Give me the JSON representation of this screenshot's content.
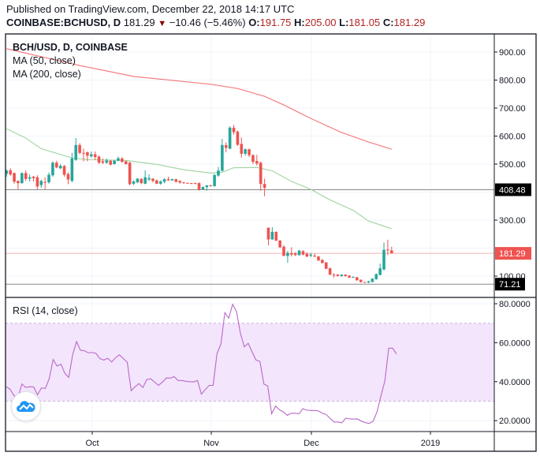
{
  "header": {
    "published": "Published on TradingView.com, December 22, 2018 14:17 UTC",
    "symbol": "COINBASE:BCHUSD, D",
    "last": "181.29",
    "direction_icon": "triangle-down-icon",
    "change": "−10.46 (−5.46%)",
    "o_label": "O:",
    "o": "191.75",
    "h_label": "H:",
    "h": "205.00",
    "l_label": "L:",
    "l": "181.05",
    "c_label": "C:",
    "c": "181.29"
  },
  "legend": {
    "title": "BCH/USD, D, COINBASE",
    "ma50": "MA (50, close)",
    "ma200": "MA (200, close)",
    "rsi": "RSI (14, close)"
  },
  "colors": {
    "up": "#26a69a",
    "down": "#ef5350",
    "ma50": "#a5d6a7",
    "ma200": "#f77c80",
    "rsi": "#ba68c8",
    "rsi_band": "#f3e5fc"
  },
  "chart_data": [
    {
      "type": "candlestick",
      "title": "BCH/USD, D, COINBASE",
      "price_ticks": [
        "100.00",
        "300.00",
        "500.00",
        "600.00",
        "700.00",
        "800.00",
        "900.00"
      ],
      "price_range": [
        20,
        945
      ],
      "x_ticks": [
        "Oct",
        "Nov",
        "Dec",
        "2019"
      ],
      "candles_ohlc": [
        [
          465,
          480,
          455,
          477
        ],
        [
          478,
          485,
          458,
          463
        ],
        [
          468,
          470,
          430,
          437
        ],
        [
          440,
          442,
          410,
          432
        ],
        [
          432,
          470,
          430,
          468
        ],
        [
          468,
          478,
          440,
          447
        ],
        [
          448,
          463,
          438,
          453
        ],
        [
          455,
          458,
          438,
          450
        ],
        [
          453,
          460,
          410,
          420
        ],
        [
          425,
          445,
          415,
          440
        ],
        [
          436,
          453,
          410,
          435
        ],
        [
          435,
          470,
          430,
          462
        ],
        [
          460,
          510,
          455,
          505
        ],
        [
          505,
          512,
          485,
          488
        ],
        [
          485,
          500,
          482,
          494
        ],
        [
          493,
          497,
          455,
          462
        ],
        [
          465,
          470,
          428,
          445
        ],
        [
          440,
          540,
          435,
          520
        ],
        [
          515,
          593,
          512,
          568
        ],
        [
          568,
          575,
          535,
          540
        ],
        [
          540,
          555,
          510,
          539
        ],
        [
          542,
          545,
          510,
          530
        ],
        [
          528,
          545,
          522,
          535
        ],
        [
          535,
          545,
          515,
          525
        ],
        [
          527,
          530,
          500,
          505
        ],
        [
          510,
          520,
          500,
          505
        ],
        [
          505,
          520,
          500,
          513
        ],
        [
          512,
          515,
          495,
          498
        ],
        [
          500,
          515,
          498,
          512
        ],
        [
          512,
          527,
          510,
          521
        ],
        [
          520,
          525,
          505,
          508
        ],
        [
          510,
          512,
          498,
          500
        ],
        [
          505,
          508,
          425,
          428
        ],
        [
          430,
          442,
          425,
          438
        ],
        [
          435,
          450,
          432,
          448
        ],
        [
          447,
          450,
          428,
          432
        ],
        [
          430,
          478,
          428,
          453
        ],
        [
          445,
          463,
          440,
          450
        ],
        [
          448,
          450,
          435,
          440
        ],
        [
          442,
          445,
          428,
          430
        ],
        [
          430,
          442,
          426,
          438
        ],
        [
          437,
          450,
          432,
          446
        ],
        [
          446,
          455,
          440,
          442
        ],
        [
          442,
          448,
          440,
          446
        ],
        [
          446,
          448,
          434,
          437
        ],
        [
          440,
          442,
          430,
          434
        ],
        [
          435,
          436,
          430,
          432
        ],
        [
          433,
          434,
          430,
          431
        ],
        [
          432,
          433,
          429,
          430
        ],
        [
          432,
          434,
          428,
          430
        ],
        [
          432,
          435,
          405,
          410
        ],
        [
          410,
          420,
          408,
          418
        ],
        [
          418,
          425,
          405,
          424
        ],
        [
          424,
          426,
          420,
          422
        ],
        [
          421,
          465,
          420,
          461
        ],
        [
          459,
          490,
          455,
          477
        ],
        [
          476,
          590,
          474,
          568
        ],
        [
          568,
          578,
          542,
          558
        ],
        [
          555,
          635,
          553,
          630
        ],
        [
          630,
          640,
          605,
          614
        ],
        [
          616,
          620,
          565,
          569
        ],
        [
          572,
          595,
          523,
          537
        ],
        [
          537,
          556,
          530,
          553
        ],
        [
          553,
          555,
          525,
          532
        ],
        [
          532,
          535,
          500,
          508
        ],
        [
          511,
          533,
          495,
          502
        ],
        [
          505,
          510,
          405,
          429
        ],
        [
          429,
          448,
          385,
          415
        ],
        [
          273,
          273,
          210,
          231
        ],
        [
          231,
          275,
          230,
          258
        ],
        [
          258,
          260,
          225,
          227
        ],
        [
          227,
          229,
          200,
          203
        ],
        [
          205,
          210,
          172,
          172
        ],
        [
          172,
          190,
          148,
          183
        ],
        [
          182,
          203,
          170,
          177
        ],
        [
          181,
          186,
          172,
          175
        ],
        [
          175,
          194,
          173,
          191
        ],
        [
          189,
          193,
          174,
          177
        ],
        [
          180,
          185,
          168,
          170
        ],
        [
          173,
          183,
          167,
          177
        ],
        [
          173,
          181,
          168,
          170
        ],
        [
          170,
          172,
          154,
          156
        ],
        [
          158,
          160,
          145,
          147
        ],
        [
          149,
          150,
          125,
          126
        ],
        [
          128,
          130,
          104,
          105
        ],
        [
          105,
          110,
          94,
          103
        ],
        [
          105,
          108,
          99,
          100
        ],
        [
          100,
          107,
          98,
          105
        ],
        [
          105,
          107,
          98,
          100
        ],
        [
          102,
          103,
          93,
          95
        ],
        [
          96,
          99,
          94,
          97
        ],
        [
          96,
          97,
          84,
          85
        ],
        [
          87,
          88,
          77,
          79
        ],
        [
          79,
          80,
          76,
          77
        ],
        [
          77,
          83,
          75,
          81
        ],
        [
          79,
          92,
          78,
          91
        ],
        [
          89,
          110,
          87,
          107
        ],
        [
          104,
          145,
          103,
          128
        ],
        [
          124,
          220,
          120,
          194
        ],
        [
          195,
          230,
          175,
          192
        ],
        [
          191.75,
          205,
          181.05,
          181.29
        ]
      ],
      "ma50_points": [
        [
          0,
          626
        ],
        [
          5,
          593
        ],
        [
          9,
          555
        ],
        [
          17,
          522
        ],
        [
          21,
          516
        ],
        [
          31,
          513
        ],
        [
          39,
          499
        ],
        [
          46,
          480
        ],
        [
          53,
          468
        ],
        [
          56,
          471
        ],
        [
          59,
          487
        ],
        [
          65,
          488
        ],
        [
          69,
          476
        ],
        [
          74,
          438
        ],
        [
          79,
          410
        ],
        [
          84,
          372
        ],
        [
          90,
          335
        ],
        [
          94,
          297
        ],
        [
          100,
          269
        ]
      ],
      "ma200_points": [
        [
          0,
          912
        ],
        [
          19,
          852
        ],
        [
          33,
          813
        ],
        [
          53,
          785
        ],
        [
          60,
          770
        ],
        [
          67,
          742
        ],
        [
          72,
          711
        ],
        [
          79,
          663
        ],
        [
          87,
          613
        ],
        [
          94,
          579
        ],
        [
          100,
          553
        ]
      ],
      "price_tags": [
        {
          "value": 408.48,
          "label": "408.48",
          "color": "#000000"
        },
        {
          "value": 181.29,
          "label": "181.29",
          "color": "#ef5350"
        },
        {
          "value": 71.21,
          "label": "71.21",
          "color": "#000000"
        }
      ]
    },
    {
      "type": "line",
      "title": "RSI (14, close)",
      "y_ticks": [
        "20.0000",
        "40.0000",
        "60.0000",
        "80.0000"
      ],
      "y_range": [
        15,
        82
      ],
      "band": [
        30,
        70
      ],
      "values": [
        37.4,
        36,
        32.7,
        32,
        38.8,
        37,
        37.4,
        37.3,
        33.3,
        36.8,
        36.5,
        41.5,
        51.4,
        48,
        49,
        44.3,
        42.2,
        53.8,
        60.6,
        56.1,
        55.9,
        54.8,
        55,
        54.5,
        51.8,
        51.1,
        52,
        50.1,
        52.3,
        53.8,
        51.8,
        50,
        35.4,
        37.4,
        39,
        37,
        41.1,
        41.5,
        39.8,
        38.1,
        39.8,
        41.9,
        41.8,
        42.6,
        40.6,
        40.6,
        40.2,
        40,
        39.9,
        40.6,
        33.6,
        36,
        38.1,
        38.1,
        54.5,
        59.3,
        75.4,
        72.6,
        79.7,
        76,
        64.7,
        57.9,
        59.7,
        55.2,
        51.1,
        50.4,
        38.8,
        37.8,
        23.5,
        27.5,
        25.6,
        24.5,
        22.7,
        23.8,
        23.8,
        23.5,
        26.1,
        25.4,
        25.2,
        25.2,
        25,
        23.8,
        23.1,
        21.1,
        19.3,
        19.3,
        18.9,
        21.3,
        20.9,
        20.8,
        20.9,
        19.7,
        19,
        18.6,
        19.7,
        24.5,
        32.7,
        40.2,
        57.2,
        57.2,
        54.2
      ]
    }
  ]
}
